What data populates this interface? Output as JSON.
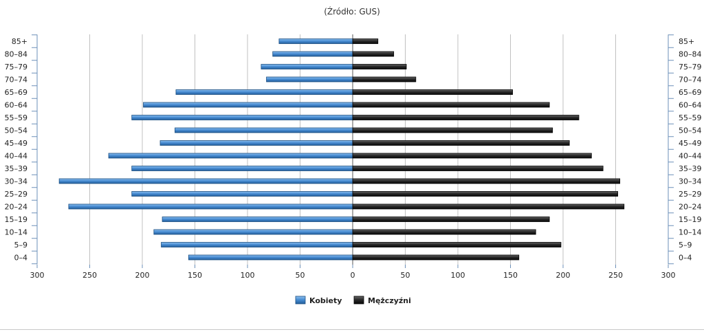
{
  "chart_data": {
    "type": "bar",
    "orientation": "horizontal",
    "subtitle": "(Źródło: GUS)",
    "categories": [
      "0–4",
      "5–9",
      "10–14",
      "15–19",
      "20–24",
      "25–29",
      "30–34",
      "35–39",
      "40–44",
      "45–49",
      "50–54",
      "55–59",
      "60–64",
      "65–69",
      "70–74",
      "75–79",
      "80–84",
      "85+"
    ],
    "series": [
      {
        "name": "Kobiety",
        "color": "#4a8ed4",
        "values": [
          156,
          182,
          189,
          181,
          270,
          210,
          279,
          210,
          232,
          183,
          169,
          210,
          199,
          168,
          82,
          87,
          76,
          70
        ]
      },
      {
        "name": "Mężczyźni",
        "color": "#2a2a2a",
        "values": [
          158,
          198,
          174,
          187,
          258,
          252,
          254,
          238,
          227,
          206,
          190,
          215,
          187,
          152,
          60,
          51,
          39,
          24
        ]
      }
    ],
    "x_ticks_left": [
      "300",
      "250",
      "200",
      "150",
      "100",
      "50",
      "0"
    ],
    "x_ticks_right": [
      "50",
      "100",
      "150",
      "200",
      "250",
      "300"
    ],
    "xlim": [
      -300,
      300
    ],
    "grid": true,
    "legend": "bottom-center"
  }
}
